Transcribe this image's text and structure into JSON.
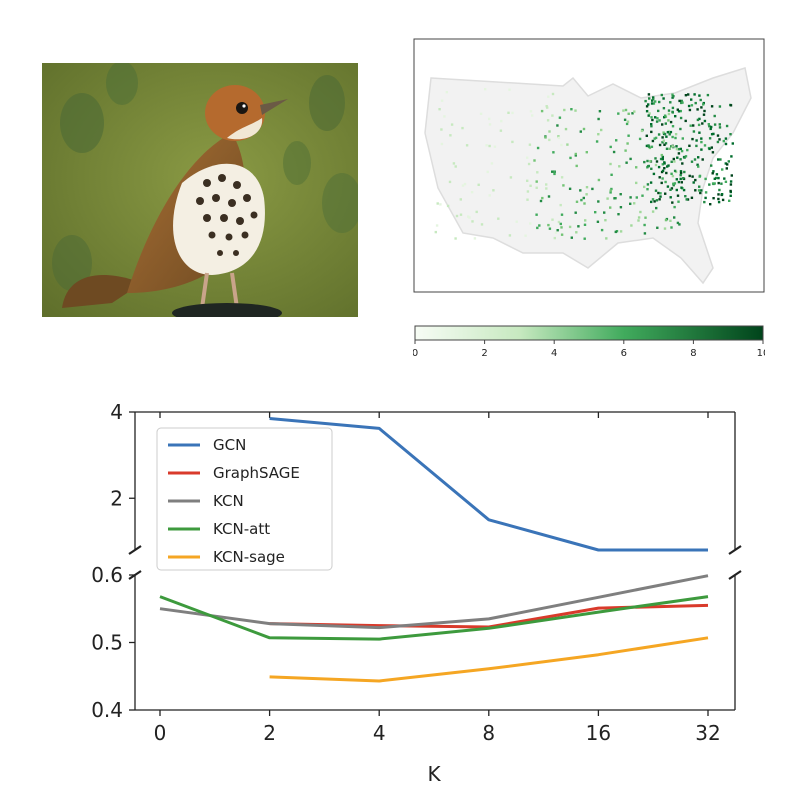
{
  "images": {
    "bird_photo": "bird-photo",
    "map": "us-distribution-map"
  },
  "map": {
    "colorbar": {
      "ticks": [
        "0",
        "2",
        "4",
        "6",
        "8",
        "10"
      ],
      "min": 0,
      "max": 10,
      "color_low": "#f7fcf5",
      "color_high": "#00441b"
    }
  },
  "chart_data": {
    "type": "line",
    "categories": [
      "0",
      "2",
      "4",
      "8",
      "16",
      "32"
    ],
    "xlabel": "K",
    "ylabel": "",
    "broken_y_axis": true,
    "top_panel": {
      "ylim": [
        0.8,
        4.0
      ],
      "yticks": [
        "2",
        "4"
      ]
    },
    "bottom_panel": {
      "ylim": [
        0.4,
        0.6
      ],
      "yticks": [
        "0.4",
        "0.5",
        "0.6"
      ]
    },
    "legend_position": "upper-left",
    "series": [
      {
        "name": "GCN",
        "color": "#3a74b8",
        "values": [
          null,
          3.85,
          3.62,
          1.5,
          0.72,
          0.72
        ]
      },
      {
        "name": "GraphSAGE",
        "color": "#d93a2b",
        "values": [
          null,
          0.528,
          0.525,
          0.523,
          0.551,
          0.555
        ]
      },
      {
        "name": "KCN",
        "color": "#7f7f7f",
        "values": [
          0.55,
          0.528,
          0.522,
          0.535,
          0.567,
          0.599
        ]
      },
      {
        "name": "KCN-att",
        "color": "#3d9a3d",
        "values": [
          0.568,
          0.507,
          0.505,
          0.521,
          0.545,
          0.568
        ]
      },
      {
        "name": "KCN-sage",
        "color": "#f5a623",
        "values": [
          null,
          0.449,
          0.443,
          0.461,
          0.482,
          0.507
        ]
      }
    ]
  }
}
